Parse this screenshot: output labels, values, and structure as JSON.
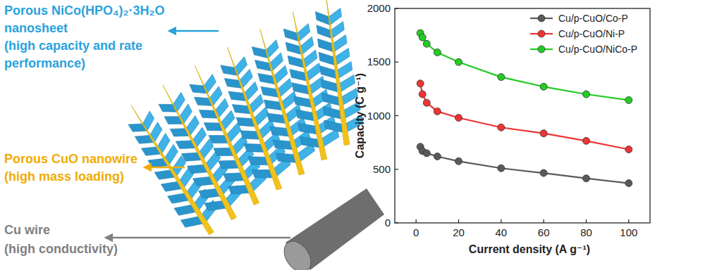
{
  "chart_data": {
    "type": "line",
    "x_label": "Current density (A g⁻¹)",
    "y_label": "Capacity (C g⁻¹)",
    "x": [
      2,
      3,
      5,
      10,
      20,
      40,
      60,
      80,
      100
    ],
    "series": [
      {
        "name": "Cu/p-CuO/Co-P",
        "color": "#5a5a5a",
        "values": [
          710,
          670,
          650,
          620,
          575,
          510,
          465,
          415,
          370
        ]
      },
      {
        "name": "Cu/p-CuO/Ni-P",
        "color": "#ee3333",
        "values": [
          1300,
          1200,
          1120,
          1040,
          980,
          890,
          835,
          765,
          685
        ]
      },
      {
        "name": "Cu/p-CuO/NiCo-P",
        "color": "#22cc22",
        "values": [
          1770,
          1730,
          1670,
          1590,
          1500,
          1360,
          1270,
          1200,
          1145
        ]
      }
    ],
    "xlim": [
      -10,
      110
    ],
    "xticks": [
      0,
      20,
      40,
      60,
      80,
      100
    ],
    "ylim": [
      0,
      2000
    ],
    "yticks": [
      0,
      500,
      1000,
      1500,
      2000
    ],
    "grid": false,
    "legend": "upper right",
    "marker": "circle",
    "line_style": "solid"
  },
  "diagram": {
    "labels": [
      {
        "color": "#2aa3dc",
        "lines": [
          "Porous NiCo(HPO₄)₂·3H₂O",
          "nanosheet",
          "(high capacity and rate",
          "performance)"
        ]
      },
      {
        "color": "#f0ac00",
        "lines": [
          "Porous CuO nanowire",
          "(high mass loading)"
        ]
      },
      {
        "color": "#808080",
        "lines": [
          "Cu wire",
          "(high conductivity)"
        ]
      }
    ]
  }
}
